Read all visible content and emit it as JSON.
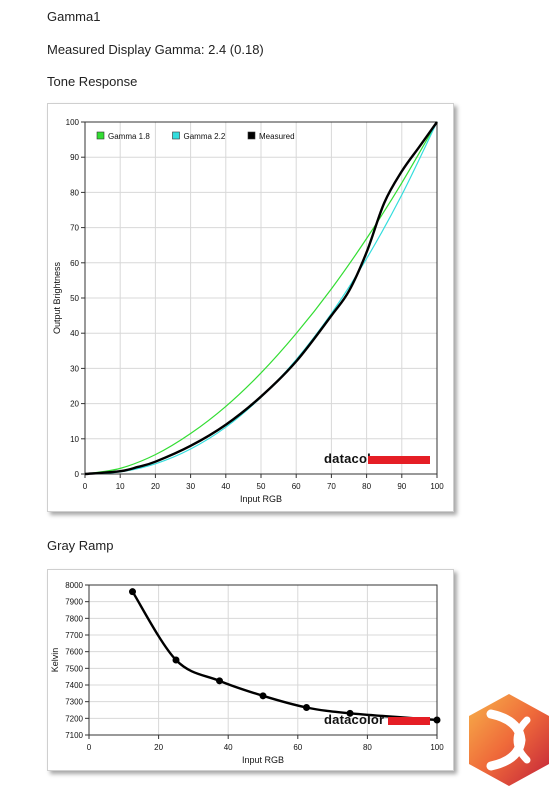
{
  "page": {
    "title": "Gamma1",
    "gamma_text": "Measured Display Gamma: 2.4 (0.18)",
    "tone_heading": "Tone Response",
    "gray_heading": "Gray Ramp"
  },
  "brand": {
    "logo_text": "datacolor",
    "bar_color": "#e51e25"
  },
  "chart_data": [
    {
      "type": "line",
      "xlabel": "Input RGB",
      "ylabel": "Output Brightness",
      "xlim": [
        0,
        100
      ],
      "ylim": [
        0,
        100
      ],
      "xticks": [
        0,
        10,
        20,
        30,
        40,
        50,
        60,
        70,
        80,
        90,
        100
      ],
      "yticks": [
        0,
        10,
        20,
        30,
        40,
        50,
        60,
        70,
        80,
        90,
        100
      ],
      "grid": true,
      "legend": "top-left",
      "series": [
        {
          "name": "Gamma 1.8",
          "color": "#33dd33",
          "x": [
            0,
            10,
            20,
            30,
            40,
            50,
            60,
            70,
            80,
            90,
            100
          ],
          "y": [
            0,
            1.6,
            5.5,
            11.5,
            19.2,
            28.7,
            39.9,
            52.6,
            66.9,
            82.7,
            100
          ]
        },
        {
          "name": "Gamma 2.2",
          "color": "#33dddd",
          "x": [
            0,
            10,
            20,
            30,
            40,
            50,
            60,
            70,
            80,
            90,
            100
          ],
          "y": [
            0,
            0.6,
            2.9,
            7.1,
            13.3,
            21.8,
            32.5,
            45.6,
            61.2,
            79.3,
            100
          ]
        },
        {
          "name": "Measured",
          "color": "#000000",
          "x": [
            0,
            10,
            15,
            20,
            30,
            40,
            50,
            60,
            70,
            75,
            80,
            85,
            90,
            95,
            100
          ],
          "y": [
            0,
            0.8,
            2,
            3.5,
            8,
            14,
            22,
            32,
            45,
            52,
            63,
            77,
            86,
            93,
            100
          ]
        }
      ]
    },
    {
      "type": "line",
      "xlabel": "Input RGB",
      "ylabel": "Kelvin",
      "xlim": [
        0,
        100
      ],
      "ylim": [
        7100,
        8000
      ],
      "xticks": [
        0,
        20,
        40,
        60,
        80,
        100
      ],
      "yticks": [
        7100,
        7200,
        7300,
        7400,
        7500,
        7600,
        7700,
        7800,
        7900,
        8000
      ],
      "grid": true,
      "series": [
        {
          "color": "#000000",
          "x": [
            12.5,
            25,
            37.5,
            50,
            62.5,
            75,
            100
          ],
          "y": [
            7960,
            7550,
            7425,
            7335,
            7265,
            7230,
            7190
          ]
        }
      ]
    }
  ]
}
